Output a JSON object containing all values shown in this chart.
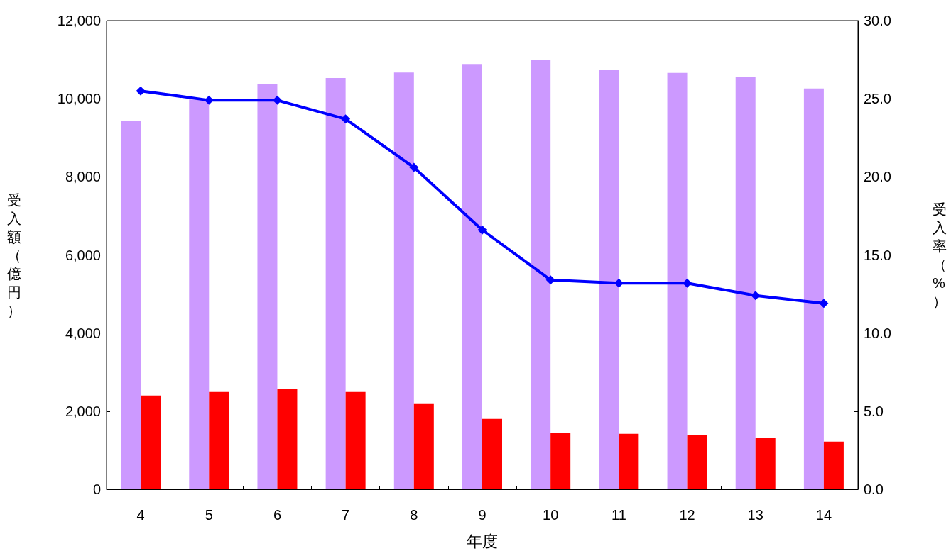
{
  "chart_data": {
    "type": "bar",
    "xlabel": "年度",
    "ylabel": "受入額（億円）",
    "y2label": "受入率（%）",
    "categories": [
      "4",
      "5",
      "6",
      "7",
      "8",
      "9",
      "10",
      "11",
      "12",
      "13",
      "14"
    ],
    "series": [
      {
        "color": "#cc99ff",
        "values": [
          9440,
          9980,
          10380,
          10530,
          10670,
          10890,
          11000,
          10730,
          10660,
          10550,
          10260
        ]
      },
      {
        "color": "#ff0000",
        "values": [
          2400,
          2490,
          2580,
          2490,
          2200,
          1800,
          1450,
          1420,
          1400,
          1310,
          1220
        ]
      },
      {
        "type": "line",
        "axis": "y2",
        "color": "#0000ff",
        "marker": "diamond",
        "values": [
          25.5,
          24.9,
          24.9,
          23.7,
          20.6,
          16.6,
          13.4,
          13.2,
          13.2,
          12.4,
          11.9
        ]
      }
    ],
    "ylim": [
      0,
      12000
    ],
    "yticks": [
      0,
      {
        "value": 2000,
        "label": "2,000"
      },
      {
        "value": 4000,
        "label": "4,000"
      },
      {
        "value": 6000,
        "label": "6,000"
      },
      {
        "value": 8000,
        "label": "8,000"
      },
      {
        "value": 10000,
        "label": "10,000"
      },
      {
        "value": 12000,
        "label": "12,000"
      }
    ],
    "y2lim": [
      0,
      30
    ],
    "y2ticks": [
      {
        "value": 0,
        "label": "0.0"
      },
      {
        "value": 5,
        "label": "5.0"
      },
      {
        "value": 10,
        "label": "10.0"
      },
      {
        "value": 15,
        "label": "15.0"
      },
      {
        "value": 20,
        "label": "20.0"
      },
      {
        "value": 25,
        "label": "25.0"
      },
      {
        "value": 30,
        "label": "30.0"
      }
    ],
    "grid": false
  }
}
